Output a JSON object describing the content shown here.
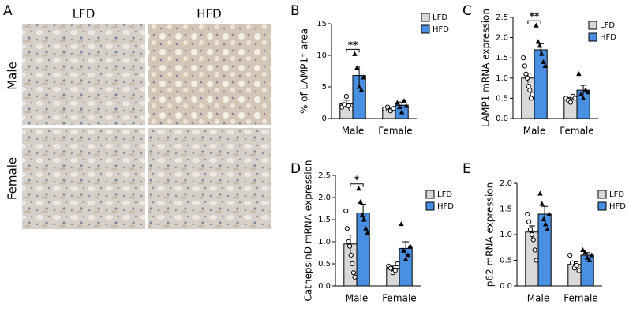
{
  "panel_a": {
    "label": "A",
    "columns": [
      "LFD",
      "HFD"
    ],
    "rows": [
      "Male",
      "Female"
    ]
  },
  "chart_data": [
    {
      "type": "bar",
      "panel": "B",
      "ylabel": "% of LAMP1⁺ area",
      "categories": [
        "Male",
        "Female"
      ],
      "ylim": [
        0,
        15
      ],
      "yticks": [
        0,
        5,
        10,
        15
      ],
      "series": [
        {
          "name": "LFD",
          "color": "#d9d9d9",
          "marker": "circle",
          "values": [
            2.3,
            1.6
          ],
          "errors": [
            0.6,
            0.2
          ],
          "points": [
            [
              1.8,
              2.2,
              3.5,
              2.0,
              1.5
            ],
            [
              1.5,
              1.8,
              1.2,
              1.6
            ]
          ]
        },
        {
          "name": "HFD",
          "color": "#4a90e2",
          "marker": "triangle",
          "values": [
            6.8,
            2.1
          ],
          "errors": [
            1.5,
            0.5
          ],
          "points": [
            [
              10.2,
              8.0,
              5.0,
              4.5,
              6.5
            ],
            [
              2.5,
              1.8,
              1.0,
              2.8,
              2.0
            ]
          ]
        }
      ],
      "significance": [
        {
          "category": 0,
          "label": "**"
        }
      ]
    },
    {
      "type": "bar",
      "panel": "C",
      "ylabel": "LAMP1 mRNA expression",
      "categories": [
        "Male",
        "Female"
      ],
      "ylim": [
        0,
        2.5
      ],
      "yticks": [
        {
          "value": 0,
          "label": "0.0"
        },
        0.5,
        {
          "value": 1,
          "label": "1.0"
        },
        1.5,
        {
          "value": 2,
          "label": "2.0"
        },
        2.5
      ],
      "series": [
        {
          "name": "LFD",
          "color": "#d9d9d9",
          "marker": "circle",
          "values": [
            1.0,
            0.47
          ],
          "errors": [
            0.12,
            0.05
          ],
          "points": [
            [
              1.5,
              1.3,
              1.1,
              1.0,
              0.8,
              0.7,
              0.5,
              0.6
            ],
            [
              0.5,
              0.45,
              0.4,
              0.55,
              0.5
            ]
          ]
        },
        {
          "name": "HFD",
          "color": "#4a90e2",
          "marker": "triangle",
          "values": [
            1.7,
            0.7
          ],
          "errors": [
            0.15,
            0.12
          ],
          "points": [
            [
              2.3,
              1.9,
              1.8,
              1.6,
              1.4,
              1.3
            ],
            [
              1.1,
              0.6,
              0.5,
              0.7,
              0.65
            ]
          ]
        }
      ],
      "significance": [
        {
          "category": 0,
          "label": "**"
        }
      ]
    },
    {
      "type": "bar",
      "panel": "D",
      "ylabel": "CathepsinD mRNA expression",
      "categories": [
        "Male",
        "Female"
      ],
      "ylim": [
        0,
        2.5
      ],
      "yticks": [
        {
          "value": 0,
          "label": "0.0"
        },
        0.5,
        {
          "value": 1,
          "label": "1.0"
        },
        1.5,
        {
          "value": 2,
          "label": "2.0"
        },
        2.5
      ],
      "series": [
        {
          "name": "LFD",
          "color": "#d9d9d9",
          "marker": "circle",
          "values": [
            0.95,
            0.4
          ],
          "errors": [
            0.2,
            0.05
          ],
          "points": [
            [
              1.7,
              1.3,
              1.0,
              0.9,
              0.7,
              0.5,
              0.3,
              0.2
            ],
            [
              0.45,
              0.4,
              0.3,
              0.35,
              0.5
            ]
          ]
        },
        {
          "name": "HFD",
          "color": "#4a90e2",
          "marker": "triangle",
          "values": [
            1.65,
            0.85
          ],
          "errors": [
            0.2,
            0.15
          ],
          "points": [
            [
              2.2,
              1.9,
              1.6,
              1.5,
              1.3,
              1.2
            ],
            [
              1.4,
              0.8,
              0.6,
              0.7,
              0.9
            ]
          ]
        }
      ],
      "significance": [
        {
          "category": 0,
          "label": "*"
        }
      ]
    },
    {
      "type": "bar",
      "panel": "E",
      "ylabel": "p62 mRNA expression",
      "categories": [
        "Male",
        "Female"
      ],
      "ylim": [
        0,
        2
      ],
      "yticks": [
        {
          "value": 0,
          "label": "0.0"
        },
        0.5,
        {
          "value": 1,
          "label": "1.0"
        },
        1.5,
        {
          "value": 2,
          "label": "2.0"
        }
      ],
      "series": [
        {
          "name": "LFD",
          "color": "#d9d9d9",
          "marker": "circle",
          "values": [
            1.05,
            0.42
          ],
          "errors": [
            0.12,
            0.05
          ],
          "points": [
            [
              1.4,
              1.25,
              1.1,
              1.0,
              0.9,
              0.7,
              0.5
            ],
            [
              0.6,
              0.45,
              0.35,
              0.4,
              0.3
            ]
          ]
        },
        {
          "name": "HFD",
          "color": "#4a90e2",
          "marker": "triangle",
          "values": [
            1.4,
            0.6
          ],
          "errors": [
            0.15,
            0.05
          ],
          "points": [
            [
              1.8,
              1.6,
              1.3,
              1.2,
              1.1,
              1.4
            ],
            [
              0.7,
              0.65,
              0.55,
              0.5,
              0.6
            ]
          ]
        }
      ],
      "significance": []
    }
  ]
}
